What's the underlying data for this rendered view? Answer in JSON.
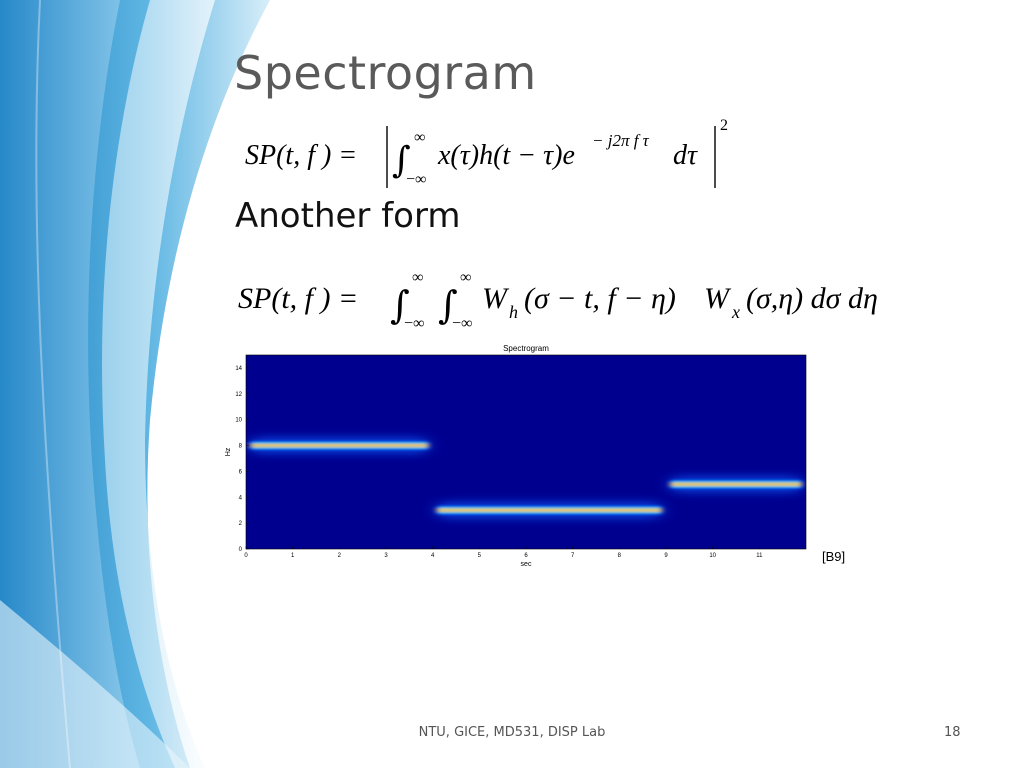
{
  "slide": {
    "title": "Spectrogram",
    "subheading": "Another form",
    "reference": "[B9]",
    "footer": "NTU, GICE, MD531, DISP Lab",
    "page_number": "18"
  },
  "equations": {
    "eq1": {
      "lhs": "SP(t, f ) =",
      "integrand": "x(τ)h(t − τ)e",
      "exponent": "− j2π f τ",
      "dvar": "dτ",
      "upper": "∞",
      "lower": "−∞",
      "power": "2"
    },
    "eq2": {
      "lhs": "SP(t, f ) =",
      "upper": "∞",
      "lower": "−∞",
      "w1": "W",
      "w1_sub": "h",
      "mid": "(σ − t, f − η)",
      "w2": "W",
      "w2_sub": "x",
      "tail": "(σ,η) dσ dη"
    }
  },
  "colors": {
    "plot_background": "#00008f",
    "accent_blue": "#3aa0d8"
  },
  "chart_data": {
    "type": "heatmap",
    "title": "Spectrogram",
    "xlabel": "sec",
    "ylabel": "Hz",
    "xlim": [
      0,
      12
    ],
    "ylim": [
      0,
      15
    ],
    "x_ticks": [
      "0",
      "1",
      "2",
      "3",
      "4",
      "5",
      "6",
      "7",
      "8",
      "9",
      "10",
      "11"
    ],
    "y_ticks": [
      "0",
      "2",
      "4",
      "6",
      "8",
      "10",
      "12",
      "14"
    ],
    "colormap": "jet",
    "series": [
      {
        "t_start": 0,
        "t_end": 4,
        "frequency": 8
      },
      {
        "t_start": 4,
        "t_end": 9,
        "frequency": 3
      },
      {
        "t_start": 9,
        "t_end": 12,
        "frequency": 5
      }
    ]
  }
}
